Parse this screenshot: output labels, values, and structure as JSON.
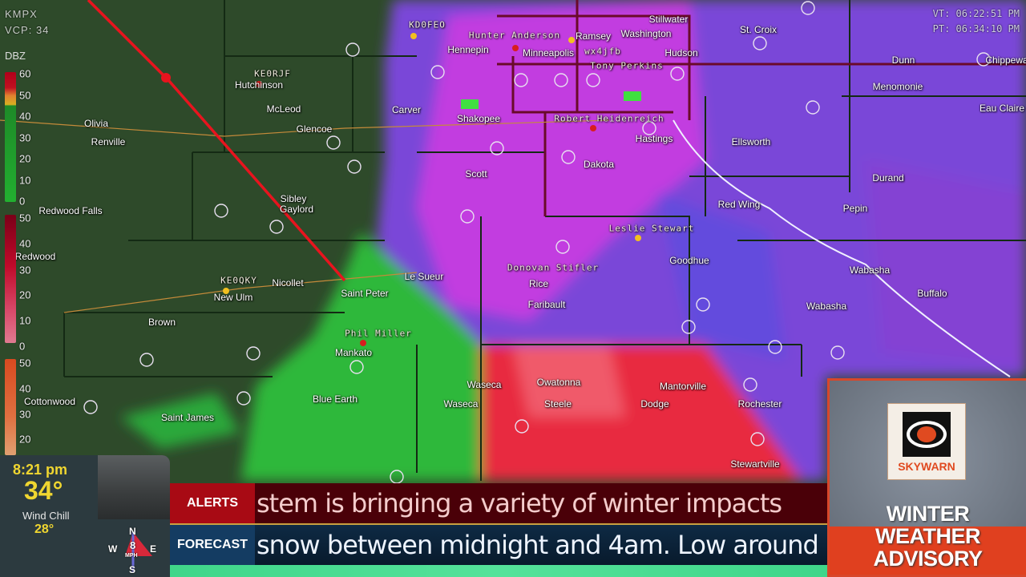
{
  "radar": {
    "site": "KMPX",
    "vcp": "VCP: 34"
  },
  "times": {
    "vt": "VT: 06:22:51 PM",
    "pt": "PT: 06:34:10 PM"
  },
  "legend": {
    "title": "DBZ",
    "rain_ticks": [
      "60",
      "50",
      "40",
      "30",
      "20",
      "10",
      "0"
    ],
    "snow_ticks": [
      "50",
      "40",
      "30",
      "20",
      "10",
      "0"
    ],
    "mix_ticks": [
      "50",
      "40",
      "30",
      "20"
    ],
    "colors": {
      "rain": "#1fa82a",
      "rain_heavy": "#c01020",
      "snow": "#c0103a",
      "mix": "#e06030"
    }
  },
  "places": [
    "Olivia",
    "Renville",
    "Hutchinson",
    "McLeod",
    "Glencoe",
    "Carver",
    "Shakopee",
    "Scott",
    "Sibley",
    "Gaylord",
    "Redwood Falls",
    "Redwood",
    "Nicollet",
    "New Ulm",
    "Le Sueur",
    "Saint Peter",
    "Brown",
    "Mankato",
    "Blue Earth",
    "Saint James",
    "Cottonwood",
    "Waseca",
    "Waseca",
    "Owatonna",
    "Steele",
    "Rice",
    "Faribault",
    "Dakota",
    "Goodhue",
    "Mantorville",
    "Dodge",
    "Rochester",
    "Stewartville",
    "Hastings",
    "Red Wing",
    "Ellsworth",
    "Durand",
    "Pepin",
    "Wabasha",
    "Wabasha",
    "Buffalo",
    "Dunn",
    "Menomonie",
    "Chippewa",
    "Eau Claire",
    "St. Croix",
    "Hudson",
    "Stillwater",
    "Washington",
    "Minneapolis",
    "Hennepin",
    "Ramsey"
  ],
  "spotters": [
    "KD0FEO",
    "KE0RJF",
    "KE0QKY",
    "Phil Miller",
    "Donovan Stifler",
    "Leslie Stewart",
    "Robert Heidenreich",
    "Tony Perkins",
    "Hunter Anderson",
    "wx4jfb"
  ],
  "conditions": {
    "time": "8:21 pm",
    "temp": "34°",
    "wind_chill_label": "Wind Chill",
    "wind_chill": "28°",
    "wind_speed": "8",
    "wind_unit": "MPH",
    "compass": {
      "n": "N",
      "s": "S",
      "e": "E",
      "w": "W"
    }
  },
  "ticker": {
    "alerts_label": "ALERTS",
    "alerts_text": "stem is bringing a variety of winter impacts",
    "forecast_label": "FORECAST",
    "forecast_text": "snow between midnight and 4am. Low around"
  },
  "advisory": {
    "logo": "SKYWARN",
    "title_lines": [
      "WINTER",
      "WEATHER",
      "ADVISORY"
    ]
  }
}
